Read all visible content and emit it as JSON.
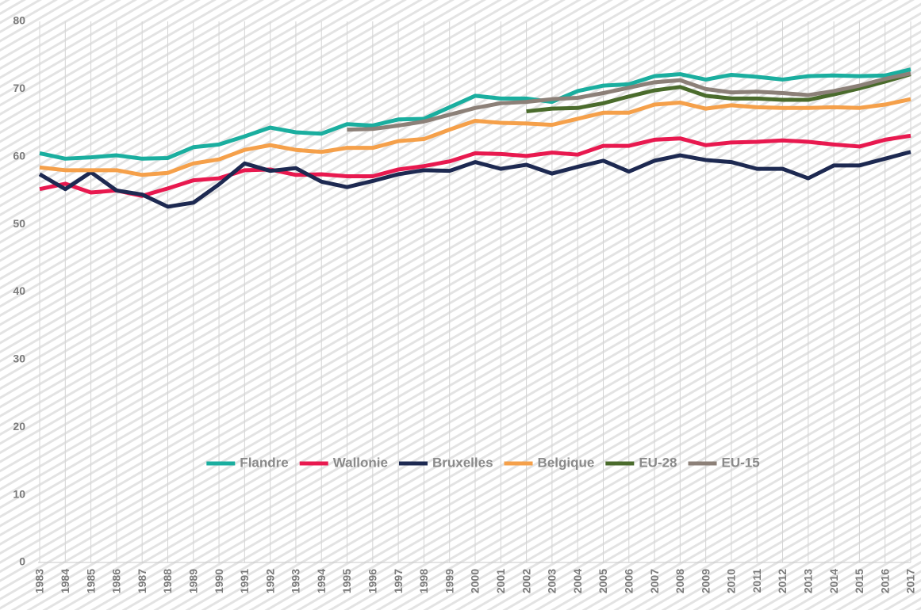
{
  "chart_data": {
    "type": "line",
    "categories": [
      "1983",
      "1984",
      "1985",
      "1986",
      "1987",
      "1988",
      "1989",
      "1990",
      "1991",
      "1992",
      "1993",
      "1994",
      "1995",
      "1996",
      "1997",
      "1998",
      "1999",
      "2000",
      "2001",
      "2002",
      "2003",
      "2004",
      "2005",
      "2006",
      "2007",
      "2008",
      "2009",
      "2010",
      "2011",
      "2012",
      "2013",
      "2014",
      "2015",
      "2016",
      "2017"
    ],
    "series": [
      {
        "name": "Flandre",
        "color": "#1aae9f",
        "values": [
          60.5,
          59.7,
          59.9,
          60.2,
          59.7,
          59.8,
          61.4,
          61.8,
          63.0,
          64.3,
          63.6,
          63.4,
          64.8,
          64.6,
          65.5,
          65.6,
          67.3,
          69.0,
          68.6,
          68.6,
          68.1,
          69.7,
          70.5,
          70.7,
          71.9,
          72.2,
          71.4,
          72.1,
          71.8,
          71.4,
          71.9,
          72.0,
          71.9,
          72.0,
          72.9
        ]
      },
      {
        "name": "Wallonie",
        "color": "#e8194f",
        "values": [
          55.2,
          56.0,
          54.7,
          55.0,
          54.2,
          55.3,
          56.5,
          56.8,
          58.0,
          58.1,
          57.3,
          57.4,
          57.1,
          57.1,
          58.1,
          58.6,
          59.3,
          60.5,
          60.4,
          60.1,
          60.6,
          60.3,
          61.6,
          61.6,
          62.5,
          62.7,
          61.7,
          62.1,
          62.2,
          62.4,
          62.2,
          61.8,
          61.5,
          62.5,
          63.1
        ]
      },
      {
        "name": "Bruxelles",
        "color": "#1d2951",
        "values": [
          57.4,
          55.2,
          57.7,
          55.0,
          54.4,
          52.6,
          53.2,
          55.9,
          59.0,
          57.9,
          58.3,
          56.3,
          55.5,
          56.4,
          57.4,
          58.0,
          57.9,
          59.2,
          58.2,
          58.8,
          57.5,
          58.5,
          59.4,
          57.8,
          59.4,
          60.2,
          59.5,
          59.2,
          58.2,
          58.2,
          56.8,
          58.7,
          58.7,
          59.7,
          60.7
        ]
      },
      {
        "name": "Belgique",
        "color": "#f5a04a",
        "values": [
          58.4,
          58.0,
          58.0,
          58.0,
          57.3,
          57.6,
          59.0,
          59.6,
          61.0,
          61.7,
          61.0,
          60.7,
          61.3,
          61.3,
          62.3,
          62.6,
          64.0,
          65.3,
          65.0,
          64.9,
          64.7,
          65.6,
          66.5,
          66.5,
          67.7,
          68.0,
          67.1,
          67.6,
          67.3,
          67.2,
          67.2,
          67.3,
          67.2,
          67.7,
          68.5
        ]
      },
      {
        "name": "EU-28",
        "color": "#4a6b2c",
        "values": [
          null,
          null,
          null,
          null,
          null,
          null,
          null,
          null,
          null,
          null,
          null,
          null,
          null,
          null,
          null,
          null,
          null,
          null,
          null,
          66.7,
          67.1,
          67.2,
          67.9,
          68.9,
          69.8,
          70.3,
          69.0,
          68.6,
          68.6,
          68.4,
          68.4,
          69.2,
          70.1,
          71.1,
          72.2
        ]
      },
      {
        "name": "EU-15",
        "color": "#8c8078",
        "values": [
          null,
          null,
          null,
          null,
          null,
          null,
          null,
          null,
          null,
          null,
          null,
          null,
          64.0,
          64.1,
          64.6,
          65.2,
          66.2,
          67.2,
          67.9,
          68.1,
          68.5,
          68.7,
          69.4,
          70.2,
          71.0,
          71.3,
          70.0,
          69.5,
          69.6,
          69.4,
          69.1,
          69.7,
          70.5,
          71.5,
          72.3
        ]
      }
    ],
    "ylim": [
      0,
      80
    ],
    "yticks": [
      0,
      10,
      20,
      30,
      40,
      50,
      60,
      70,
      80
    ],
    "grid": true
  }
}
